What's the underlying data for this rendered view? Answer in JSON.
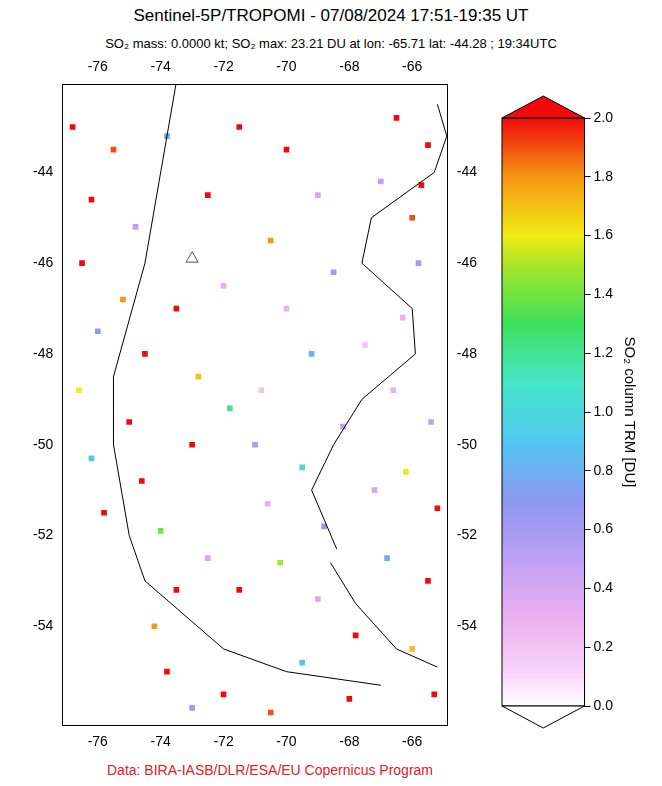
{
  "chart_data": {
    "type": "scatter",
    "title": "Sentinel-5P/TROPOMI - 07/08/2024 17:51-19:35 UT",
    "subtitle": "SO₂ mass: 0.0000 kt; SO₂ max: 23.21 DU at lon: -65.71 lat: -44.28 ; 19:34UTC",
    "source": "Data: BIRA-IASB/DLR/ESA/EU Copernicus Program",
    "xlim": [
      -77.13,
      -64.87
    ],
    "ylim": [
      -56.18,
      -42.07
    ],
    "xticks": [
      -76,
      -74,
      -72,
      -70,
      -68,
      -66
    ],
    "yticks": [
      -54,
      -52,
      -50,
      -48,
      -46,
      -44
    ],
    "grid": false,
    "pixels": {
      "marker": "square",
      "x": [
        -76.8,
        -75.5,
        -76.2,
        -74.8,
        -76.5,
        -75.2,
        -76.0,
        -74.5,
        -76.6,
        -75.0,
        -76.2,
        -74.6,
        -75.8,
        -74.0,
        -73.5,
        -74.2,
        -73.8,
        -73.0,
        -72.0,
        -70.5,
        -71.5,
        -72.5,
        -73.0,
        -72.8,
        -73.5,
        -72.5,
        -73.8,
        -71.5,
        -72.0,
        -71.8,
        -70.0,
        -69.0,
        -70.5,
        -68.5,
        -70.0,
        -69.2,
        -70.8,
        -68.2,
        -69.5,
        -70.6,
        -68.8,
        -70.2,
        -69.0,
        -67.8,
        -69.5,
        -68.0,
        -71.0,
        -67.5,
        -66.5,
        -65.5,
        -65.71,
        -66.0,
        -67.0,
        -65.8,
        -66.6,
        -65.4,
        -66.2,
        -65.2,
        -66.8,
        -65.5,
        -66.0,
        -65.3,
        -67.2,
        -66.3
      ],
      "y": [
        -43.0,
        -43.5,
        -44.6,
        -45.2,
        -46.0,
        -46.8,
        -47.5,
        -48.0,
        -48.8,
        -49.5,
        -50.3,
        -50.8,
        -51.5,
        -51.9,
        -53.2,
        -54.0,
        -55.0,
        -55.8,
        -55.5,
        -55.9,
        -53.2,
        -52.5,
        -50.0,
        -48.5,
        -47.0,
        -44.5,
        -43.2,
        -43.0,
        -46.5,
        -49.2,
        -43.5,
        -44.5,
        -45.5,
        -46.2,
        -47.0,
        -48.0,
        -48.8,
        -49.6,
        -50.5,
        -51.3,
        -51.8,
        -52.6,
        -53.4,
        -54.2,
        -54.8,
        -55.6,
        -50.0,
        -47.8,
        -42.8,
        -43.4,
        -44.28,
        -45.0,
        -44.2,
        -46.0,
        -48.8,
        -49.5,
        -50.6,
        -51.4,
        -52.5,
        -53.0,
        -54.5,
        -55.5,
        -51.0,
        -47.2
      ],
      "values": [
        2.0,
        1.9,
        2.0,
        0.5,
        2.0,
        1.8,
        0.7,
        2.0,
        1.6,
        2.0,
        0.9,
        2.0,
        2.0,
        1.4,
        2.0,
        1.8,
        2.0,
        0.6,
        2.0,
        1.9,
        2.0,
        0.4,
        2.0,
        1.7,
        2.0,
        2.0,
        0.8,
        2.0,
        0.3,
        1.2,
        2.0,
        0.4,
        1.8,
        0.6,
        0.3,
        0.8,
        0.2,
        0.5,
        1.0,
        0.3,
        0.7,
        1.5,
        0.4,
        2.0,
        0.9,
        2.0,
        0.6,
        0.2,
        2.0,
        2.0,
        2.0,
        1.9,
        0.5,
        0.6,
        0.3,
        0.5,
        1.6,
        2.0,
        0.8,
        2.0,
        1.7,
        2.0,
        0.4,
        0.3
      ]
    },
    "coastline": {
      "color": "#000000",
      "x": [
        -65.2,
        -64.9,
        -65.3,
        -67.3,
        -67.6,
        -66.0,
        -65.9,
        -67.6,
        -68.5,
        -69.2,
        -68.4,
        null,
        -68.6,
        -67.8,
        -66.5,
        -65.2,
        null,
        -73.5,
        -74.5,
        -75.5,
        -75.5,
        -75.0,
        -74.5,
        -72.0,
        -70.0,
        -67.0
      ],
      "y": [
        -42.5,
        -43.2,
        -44.0,
        -45.0,
        -46.0,
        -47.0,
        -48.0,
        -49.0,
        -50.0,
        -51.0,
        -52.3,
        null,
        -52.6,
        -53.5,
        -54.5,
        -54.9,
        null,
        -42.0,
        -46.0,
        -48.5,
        -50.0,
        -52.0,
        -53.0,
        -54.5,
        -55.0,
        -55.3
      ]
    },
    "volcano": {
      "marker": "triangle",
      "x": [
        -73.0
      ],
      "y": [
        -45.9
      ]
    },
    "colorbar": {
      "title": "SO₂ column TRM [DU]",
      "range": [
        0,
        2
      ],
      "ticks": [
        {
          "value": 0,
          "label": "0.0"
        },
        0.2,
        0.4,
        0.6,
        0.8,
        {
          "value": 1,
          "label": "1.0"
        },
        1.2,
        1.4,
        1.6,
        1.8,
        {
          "value": 2,
          "label": "2.0"
        }
      ]
    }
  }
}
